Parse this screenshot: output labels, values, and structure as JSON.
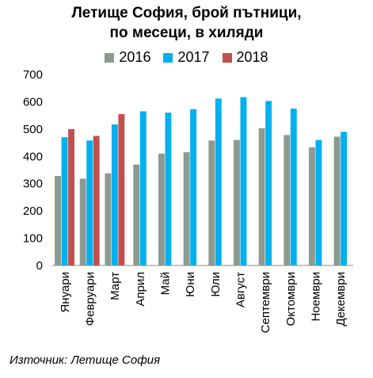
{
  "chart_data": {
    "type": "bar",
    "title_lines": [
      "Летище София, брой пътници,",
      "по месеци, в хиляди"
    ],
    "categories": [
      "Януари",
      "Февруари",
      "Март",
      "Април",
      "Май",
      "Юни",
      "Юли",
      "Август",
      "Септември",
      "Октомври",
      "Ноември",
      "Декември"
    ],
    "series": [
      {
        "name": "2016",
        "color": "#8c9a8f",
        "values": [
          328,
          318,
          338,
          370,
          410,
          415,
          458,
          460,
          503,
          478,
          433,
          472
        ]
      },
      {
        "name": "2017",
        "color": "#00b0f0",
        "values": [
          470,
          458,
          517,
          565,
          560,
          573,
          612,
          617,
          603,
          575,
          460,
          490
        ]
      },
      {
        "name": "2018",
        "color": "#c0504d",
        "values": [
          500,
          475,
          555,
          null,
          null,
          null,
          null,
          null,
          null,
          null,
          null,
          null
        ]
      }
    ],
    "ylim": [
      0,
      700
    ],
    "yticks": [
      0,
      100,
      200,
      300,
      400,
      500,
      600,
      700
    ],
    "grid": false,
    "legend_position": "top"
  },
  "source": "Източник: Летище София"
}
